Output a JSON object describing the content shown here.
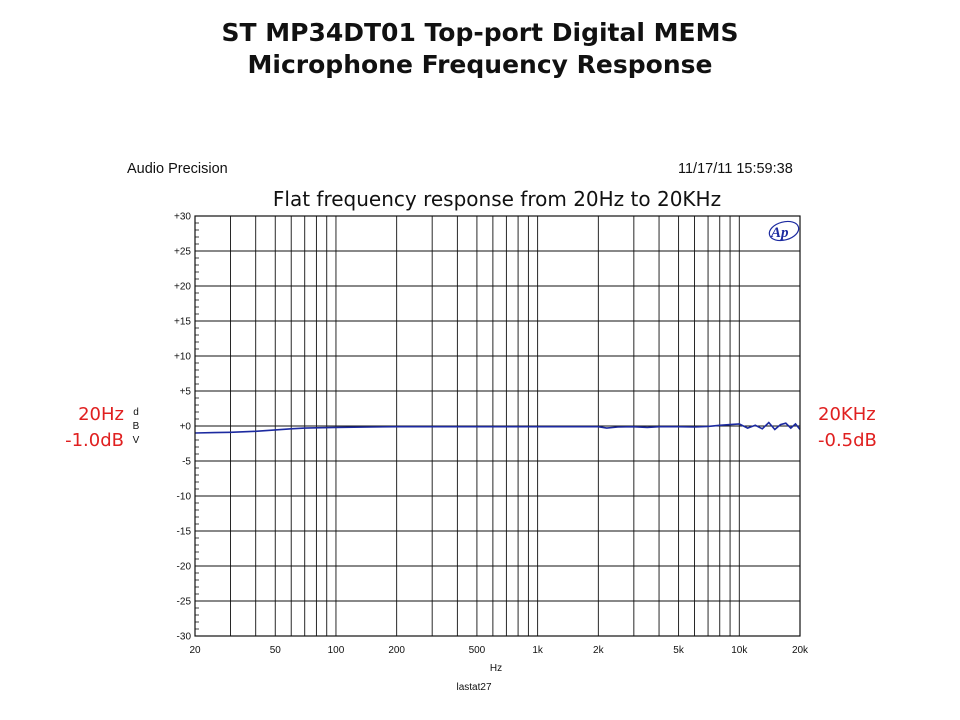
{
  "title": {
    "line1": "ST MP34DT01 Top-port Digital MEMS",
    "line2": "Microphone Frequency Response"
  },
  "header": {
    "brand": "Audio Precision",
    "timestamp": "11/17/11 15:59:38"
  },
  "annotation": "Flat frequency response from 20Hz to 20KHz",
  "callouts": {
    "left": {
      "freq": "20Hz",
      "level": "-1.0dB"
    },
    "right": {
      "freq": "20KHz",
      "level": "-0.5dB"
    }
  },
  "logo_text": "Ap",
  "colors": {
    "trace": "#1c2aa0",
    "callout": "#e02020",
    "grid": "#111111"
  },
  "chart_data": {
    "type": "line",
    "x_scale": "log",
    "xlim": [
      20,
      20000
    ],
    "ylim": [
      -30,
      30
    ],
    "grid": true,
    "xlabel": "Hz",
    "ylabel": "dBV",
    "footer": "lastat27",
    "x_ticks": [
      20,
      50,
      100,
      200,
      500,
      1000,
      2000,
      5000,
      10000,
      20000
    ],
    "x_tick_labels": [
      "20",
      "50",
      "100",
      "200",
      "500",
      "1k",
      "2k",
      "5k",
      "10k",
      "20k"
    ],
    "y_ticks": [
      30,
      25,
      20,
      15,
      10,
      5,
      0,
      -5,
      -10,
      -15,
      -20,
      -25,
      -30
    ],
    "y_tick_labels": [
      "+30",
      "+25",
      "+20",
      "+15",
      "+10",
      "+5",
      "+0",
      "-5",
      "-10",
      "-15",
      "-20",
      "-25",
      "-30"
    ],
    "series": [
      {
        "x": [
          20,
          25,
          30,
          40,
          50,
          60,
          70,
          80,
          100,
          150,
          200,
          300,
          500,
          700,
          1000,
          1500,
          2000,
          2200,
          2500,
          3000,
          3500,
          4000,
          5000,
          6000,
          7000,
          8000,
          9000,
          10000,
          11000,
          12000,
          13000,
          14000,
          15000,
          16000,
          17000,
          18000,
          19000,
          20000
        ],
        "y": [
          -1.0,
          -0.95,
          -0.9,
          -0.75,
          -0.55,
          -0.4,
          -0.3,
          -0.25,
          -0.2,
          -0.15,
          -0.1,
          -0.1,
          -0.1,
          -0.1,
          -0.1,
          -0.1,
          -0.1,
          -0.3,
          -0.15,
          -0.1,
          -0.2,
          -0.1,
          -0.1,
          -0.15,
          -0.05,
          0.1,
          0.2,
          0.3,
          -0.3,
          0.1,
          -0.4,
          0.5,
          -0.5,
          0.2,
          0.4,
          -0.3,
          0.3,
          -0.5
        ]
      }
    ]
  }
}
